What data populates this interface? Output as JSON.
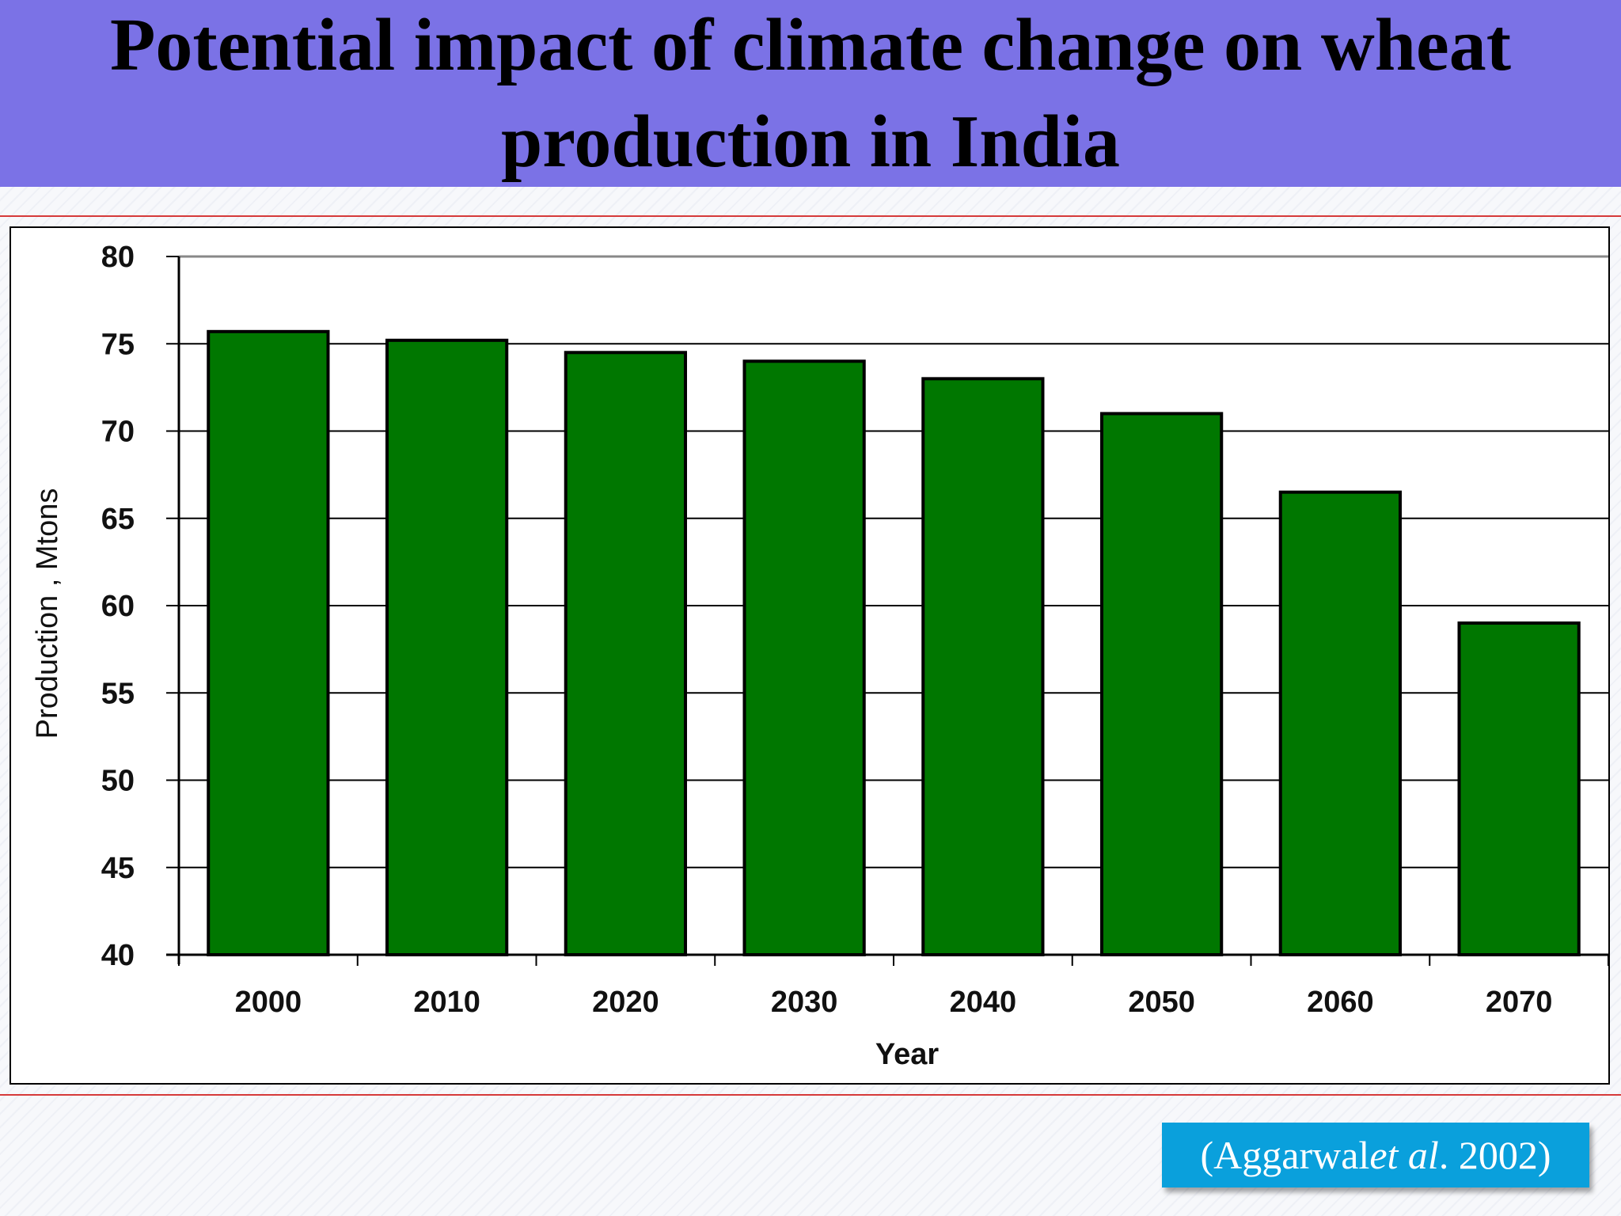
{
  "slide": {
    "title": "Potential impact of climate change on wheat production in India",
    "citation": {
      "open": "(Aggarwal ",
      "italic": "et al",
      "close": ". 2002)"
    }
  },
  "colors": {
    "title_band": "#7b72e6",
    "bar_fill": "#007700",
    "citation_bg": "#0aa0dc",
    "rule_lines": "#d63a3a"
  },
  "chart_data": {
    "type": "bar",
    "title": "",
    "xlabel": "Year",
    "ylabel": "Production , Mtons",
    "categories": [
      "2000",
      "2010",
      "2020",
      "2030",
      "2040",
      "2050",
      "2060",
      "2070"
    ],
    "values": [
      75.7,
      75.2,
      74.5,
      74.0,
      73.0,
      71.0,
      66.5,
      59.0
    ],
    "ylim": [
      40,
      80
    ],
    "yticks": [
      40,
      45,
      50,
      55,
      60,
      65,
      70,
      75,
      80
    ],
    "grid": true,
    "legend": "none"
  }
}
